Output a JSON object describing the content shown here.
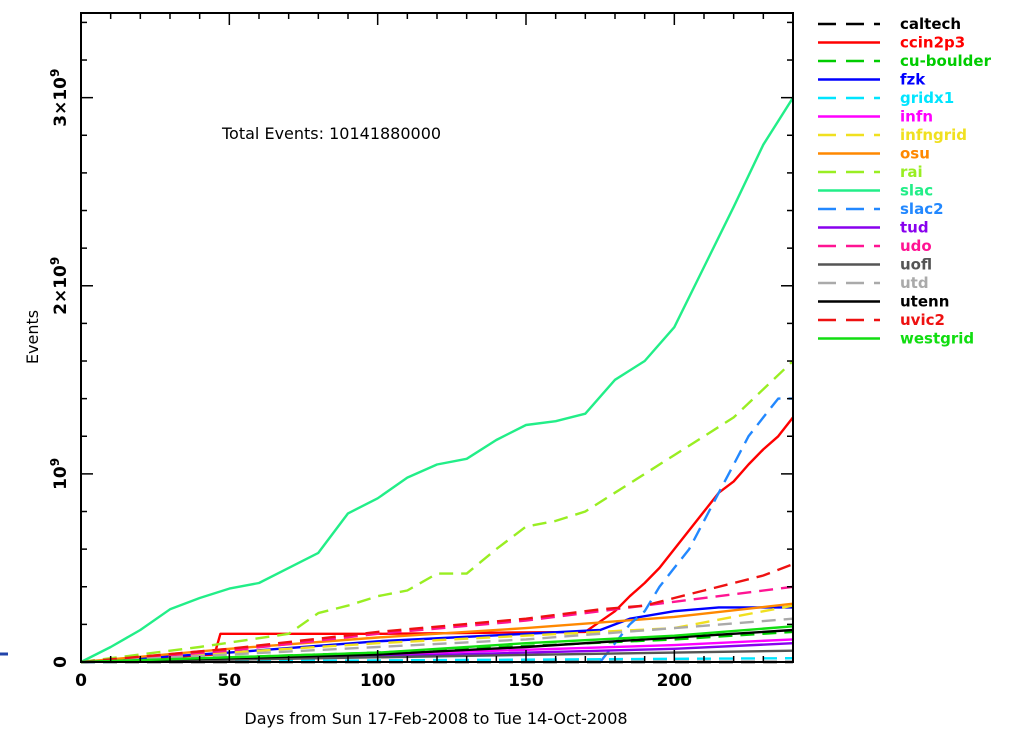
{
  "chart_data": {
    "type": "line",
    "title": "",
    "xlabel": "Days from Sun 17-Feb-2008 to Tue 14-Oct-2008",
    "ylabel": "Events",
    "xlim": [
      0,
      240
    ],
    "ylim": [
      0,
      3450000000
    ],
    "xticks": [
      0,
      50,
      100,
      150,
      200
    ],
    "yticks": [
      {
        "value": 0,
        "mantissa": "0",
        "exp": ""
      },
      {
        "value": 1000000000,
        "mantissa": "10",
        "exp": "9"
      },
      {
        "value": 2000000000,
        "mantissa": "2×10",
        "exp": "9"
      },
      {
        "value": 3000000000,
        "mantissa": "3×10",
        "exp": "9"
      }
    ],
    "annotation": "Total Events: 10141880000",
    "legend_position": "right, outside plot",
    "grid": false,
    "series": [
      {
        "name": "caltech",
        "color": "#000000",
        "dash": true,
        "x": [
          0,
          240
        ],
        "y": [
          0,
          0
        ]
      },
      {
        "name": "ccin2p3",
        "color": "#ff0000",
        "dash": false,
        "x": [
          0,
          45,
          47,
          100,
          170,
          180,
          185,
          190,
          195,
          200,
          205,
          210,
          215,
          220,
          225,
          230,
          235,
          240
        ],
        "y": [
          0,
          40000000,
          150000000,
          150000000,
          160000000,
          270000000,
          350000000,
          420000000,
          500000000,
          600000000,
          700000000,
          800000000,
          900000000,
          960000000,
          1050000000,
          1130000000,
          1200000000,
          1300000000
        ]
      },
      {
        "name": "cu-boulder",
        "color": "#00cc00",
        "dash": true,
        "x": [
          0,
          100,
          200,
          240
        ],
        "y": [
          0,
          50000000,
          120000000,
          160000000
        ]
      },
      {
        "name": "fzk",
        "color": "#0000ff",
        "dash": false,
        "x": [
          0,
          50,
          100,
          150,
          175,
          185,
          200,
          215,
          240
        ],
        "y": [
          0,
          50000000,
          110000000,
          150000000,
          170000000,
          230000000,
          270000000,
          290000000,
          290000000
        ]
      },
      {
        "name": "gridx1",
        "color": "#00e5ff",
        "dash": true,
        "x": [
          0,
          240
        ],
        "y": [
          0,
          20000000
        ]
      },
      {
        "name": "infn",
        "color": "#ff00ff",
        "dash": false,
        "x": [
          0,
          100,
          200,
          240
        ],
        "y": [
          0,
          40000000,
          90000000,
          120000000
        ]
      },
      {
        "name": "infngrid",
        "color": "#f0e020",
        "dash": true,
        "x": [
          0,
          100,
          200,
          240
        ],
        "y": [
          0,
          100000000,
          180000000,
          300000000
        ]
      },
      {
        "name": "osu",
        "color": "#ff8800",
        "dash": false,
        "x": [
          0,
          50,
          100,
          150,
          200,
          240
        ],
        "y": [
          0,
          70000000,
          130000000,
          180000000,
          240000000,
          310000000
        ]
      },
      {
        "name": "rai",
        "color": "#99ee22",
        "dash": true,
        "x": [
          0,
          40,
          70,
          80,
          90,
          100,
          110,
          120,
          130,
          140,
          150,
          160,
          170,
          180,
          190,
          200,
          210,
          220,
          230,
          240
        ],
        "y": [
          0,
          80000000,
          150000000,
          260000000,
          300000000,
          350000000,
          380000000,
          470000000,
          470000000,
          600000000,
          720000000,
          750000000,
          800000000,
          900000000,
          1000000000,
          1100000000,
          1200000000,
          1300000000,
          1450000000,
          1600000000
        ]
      },
      {
        "name": "slac",
        "color": "#22ee88",
        "dash": false,
        "x": [
          0,
          10,
          20,
          30,
          40,
          50,
          60,
          70,
          80,
          90,
          100,
          110,
          120,
          130,
          140,
          150,
          160,
          170,
          180,
          190,
          200,
          210,
          220,
          230,
          240
        ],
        "y": [
          0,
          80000000,
          170000000,
          280000000,
          340000000,
          390000000,
          420000000,
          500000000,
          580000000,
          790000000,
          870000000,
          980000000,
          1050000000,
          1080000000,
          1180000000,
          1260000000,
          1280000000,
          1320000000,
          1500000000,
          1600000000,
          1780000000,
          2100000000,
          2420000000,
          2750000000,
          3000000000
        ]
      },
      {
        "name": "slac2",
        "color": "#2288ff",
        "dash": true,
        "x": [
          175,
          180,
          185,
          190,
          195,
          200,
          205,
          210,
          215,
          220,
          225,
          230,
          235,
          240
        ],
        "y": [
          0,
          100000000,
          200000000,
          270000000,
          400000000,
          500000000,
          600000000,
          750000000,
          900000000,
          1050000000,
          1200000000,
          1300000000,
          1400000000,
          1400000000
        ]
      },
      {
        "name": "tud",
        "color": "#8800ee",
        "dash": false,
        "x": [
          0,
          100,
          200,
          240
        ],
        "y": [
          0,
          30000000,
          70000000,
          100000000
        ]
      },
      {
        "name": "udo",
        "color": "#ff1493",
        "dash": true,
        "x": [
          0,
          50,
          100,
          150,
          180,
          200,
          220,
          240
        ],
        "y": [
          0,
          60000000,
          150000000,
          220000000,
          280000000,
          320000000,
          360000000,
          400000000
        ]
      },
      {
        "name": "uofl",
        "color": "#555555",
        "dash": false,
        "x": [
          0,
          240
        ],
        "y": [
          0,
          60000000
        ]
      },
      {
        "name": "utd",
        "color": "#aaaaaa",
        "dash": true,
        "x": [
          0,
          100,
          150,
          200,
          240
        ],
        "y": [
          0,
          80000000,
          120000000,
          180000000,
          230000000
        ]
      },
      {
        "name": "utenn",
        "color": "#000000",
        "dash": false,
        "x": [
          0,
          100,
          150,
          200,
          240
        ],
        "y": [
          0,
          40000000,
          80000000,
          130000000,
          170000000
        ]
      },
      {
        "name": "uvic2",
        "color": "#ee1111",
        "dash": true,
        "x": [
          0,
          50,
          100,
          150,
          175,
          190,
          200,
          210,
          220,
          230,
          240
        ],
        "y": [
          0,
          70000000,
          160000000,
          230000000,
          280000000,
          300000000,
          340000000,
          380000000,
          420000000,
          460000000,
          520000000
        ]
      },
      {
        "name": "westgrid",
        "color": "#11dd11",
        "dash": false,
        "x": [
          0,
          100,
          150,
          200,
          240
        ],
        "y": [
          0,
          50000000,
          100000000,
          140000000,
          190000000
        ]
      }
    ]
  }
}
